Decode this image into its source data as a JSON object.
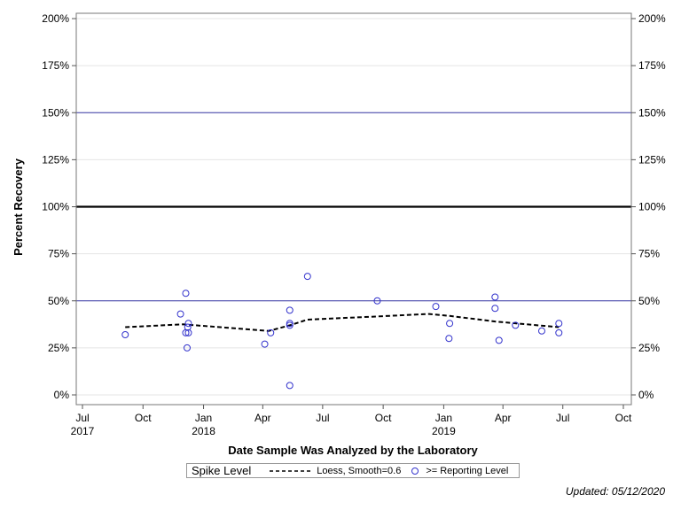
{
  "chart_data": {
    "type": "scatter",
    "xlabel": "Date Sample Was Analyzed by the Laboratory",
    "ylabel": "Percent Recovery",
    "x_ticks": [
      {
        "date": "2017-07-01",
        "label": "Jul",
        "year": "2017"
      },
      {
        "date": "2017-10-01",
        "label": "Oct",
        "year": ""
      },
      {
        "date": "2018-01-01",
        "label": "Jan",
        "year": "2018"
      },
      {
        "date": "2018-04-01",
        "label": "Apr",
        "year": ""
      },
      {
        "date": "2018-07-01",
        "label": "Jul",
        "year": ""
      },
      {
        "date": "2018-10-01",
        "label": "Oct",
        "year": ""
      },
      {
        "date": "2019-01-01",
        "label": "Jan",
        "year": "2019"
      },
      {
        "date": "2019-04-01",
        "label": "Apr",
        "year": ""
      },
      {
        "date": "2019-07-01",
        "label": "Jul",
        "year": ""
      },
      {
        "date": "2019-10-01",
        "label": "Oct",
        "year": ""
      }
    ],
    "xlim": [
      "2017-07-01",
      "2019-10-01"
    ],
    "y_ticks": [
      {
        "value": 0,
        "label": "0%"
      },
      {
        "value": 25,
        "label": "25%"
      },
      {
        "value": 50,
        "label": "50%"
      },
      {
        "value": 75,
        "label": "75%"
      },
      {
        "value": 100,
        "label": "100%"
      },
      {
        "value": 125,
        "label": "125%"
      },
      {
        "value": 150,
        "label": "150%"
      },
      {
        "value": 175,
        "label": "175%"
      },
      {
        "value": 200,
        "label": "200%"
      }
    ],
    "ylim": [
      0,
      200
    ],
    "reference_lines": [
      {
        "value": 100,
        "color": "#000000",
        "style": "thick"
      },
      {
        "value": 150,
        "color": "#3a3aa8",
        "style": "thin"
      },
      {
        "value": 50,
        "color": "#3a3aa8",
        "style": "thin"
      }
    ],
    "grid": true,
    "series": [
      {
        "name": ">= Reporting Level",
        "type": "scatter",
        "color": "#3333cc",
        "points": [
          {
            "x": "2017-09-04",
            "y": 32
          },
          {
            "x": "2017-11-27",
            "y": 43
          },
          {
            "x": "2017-12-05",
            "y": 54
          },
          {
            "x": "2017-12-05",
            "y": 33
          },
          {
            "x": "2017-12-08",
            "y": 36
          },
          {
            "x": "2017-12-09",
            "y": 38
          },
          {
            "x": "2017-12-09",
            "y": 33
          },
          {
            "x": "2017-12-07",
            "y": 25
          },
          {
            "x": "2018-04-04",
            "y": 27
          },
          {
            "x": "2018-04-13",
            "y": 33
          },
          {
            "x": "2018-05-12",
            "y": 45
          },
          {
            "x": "2018-05-12",
            "y": 38
          },
          {
            "x": "2018-05-12",
            "y": 37
          },
          {
            "x": "2018-05-12",
            "y": 5
          },
          {
            "x": "2018-06-08",
            "y": 63
          },
          {
            "x": "2018-09-22",
            "y": 50
          },
          {
            "x": "2018-12-20",
            "y": 47
          },
          {
            "x": "2019-01-10",
            "y": 38
          },
          {
            "x": "2019-01-09",
            "y": 30
          },
          {
            "x": "2019-03-20",
            "y": 52
          },
          {
            "x": "2019-03-20",
            "y": 46
          },
          {
            "x": "2019-03-26",
            "y": 29
          },
          {
            "x": "2019-04-20",
            "y": 37
          },
          {
            "x": "2019-05-30",
            "y": 34
          },
          {
            "x": "2019-06-25",
            "y": 38
          },
          {
            "x": "2019-06-25",
            "y": 33
          }
        ]
      },
      {
        "name": "Loess, Smooth=0.6",
        "type": "line",
        "style": "dashed",
        "color": "#000000",
        "points": [
          {
            "x": "2017-09-04",
            "y": 36
          },
          {
            "x": "2017-12-01",
            "y": 37.5
          },
          {
            "x": "2018-04-10",
            "y": 34
          },
          {
            "x": "2018-05-12",
            "y": 37
          },
          {
            "x": "2018-06-08",
            "y": 40
          },
          {
            "x": "2018-09-10",
            "y": 41.5
          },
          {
            "x": "2018-12-10",
            "y": 43
          },
          {
            "x": "2019-01-10",
            "y": 42
          },
          {
            "x": "2019-03-20",
            "y": 39
          },
          {
            "x": "2019-06-25",
            "y": 36
          }
        ]
      }
    ]
  },
  "legend": {
    "title": "Spike Level",
    "loess_label": "Loess, Smooth=0.6",
    "points_label": ">= Reporting Level"
  },
  "footer": {
    "updated": "Updated: 05/12/2020"
  }
}
